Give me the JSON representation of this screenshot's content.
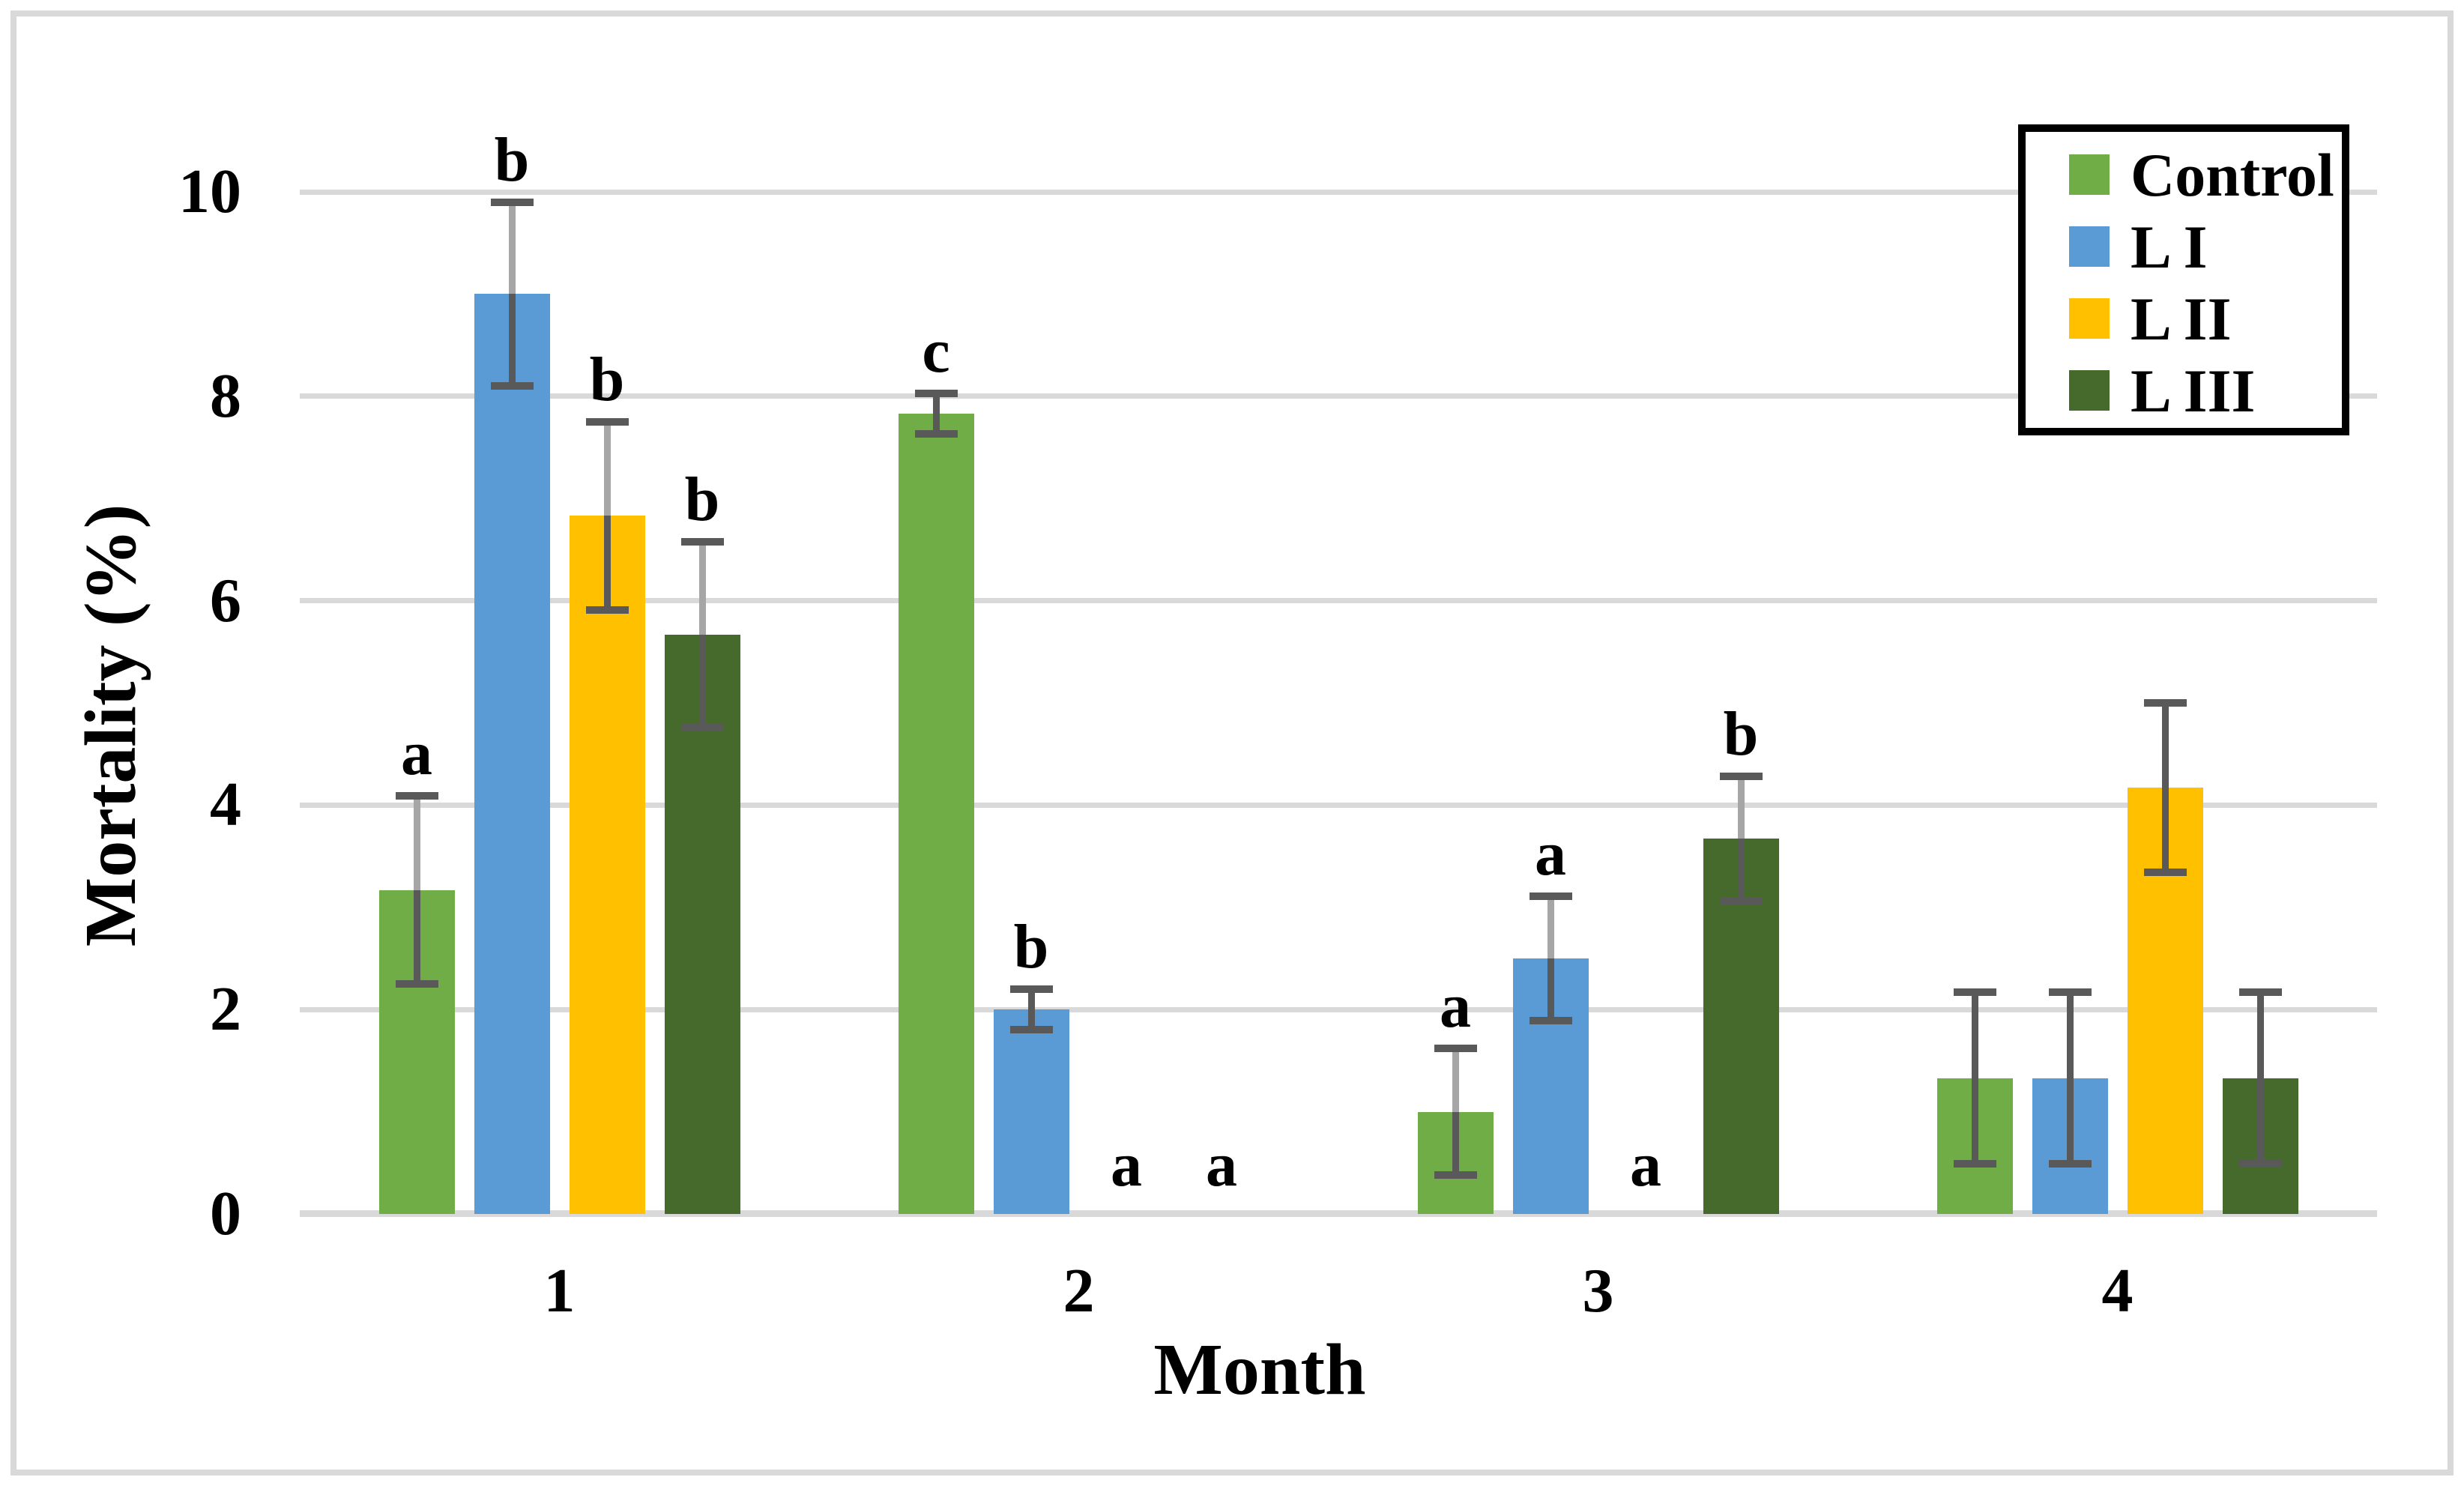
{
  "chart_data": {
    "type": "bar",
    "title": "",
    "xlabel": "Month",
    "ylabel": "Mortality (%)",
    "categories": [
      "1",
      "2",
      "3",
      "4"
    ],
    "ylim": [
      0,
      10
    ],
    "yticks": [
      0,
      2,
      4,
      6,
      8,
      10
    ],
    "grid": true,
    "legend_position": "top-right",
    "series": [
      {
        "name": "Control",
        "color": "#70AD47",
        "values": [
          3.17,
          7.83,
          1.0,
          1.33
        ],
        "errors": [
          0.92,
          0.2,
          0.62,
          0.84
        ],
        "letters": [
          "a",
          "c",
          "a",
          ""
        ]
      },
      {
        "name": "L I",
        "color": "#5B9BD5",
        "values": [
          9.0,
          2.0,
          2.5,
          1.33
        ],
        "errors": [
          0.9,
          0.2,
          0.61,
          0.84
        ],
        "letters": [
          "b",
          "b",
          "a",
          ""
        ]
      },
      {
        "name": "L II",
        "color": "#FFC000",
        "values": [
          6.83,
          0,
          0,
          4.17
        ],
        "errors": [
          0.92,
          0,
          0,
          0.83
        ],
        "letters": [
          "b",
          "a",
          "a",
          ""
        ]
      },
      {
        "name": "L III",
        "color": "#456A2C",
        "values": [
          5.67,
          0,
          3.67,
          1.33
        ],
        "errors": [
          0.91,
          0,
          0.61,
          0.84
        ],
        "letters": [
          "b",
          "a",
          "b",
          ""
        ]
      }
    ],
    "error_bar_style": {
      "cap_color": "#595959",
      "stem_below_bar_top_color": "#595959",
      "stem_above_bar_top_color_by_month": [
        "#a6a6a6",
        "#595959",
        "#a6a6a6",
        "#595959"
      ]
    },
    "colors": {
      "gridline": "#d9d9d9",
      "axis_baseline": "#d9d9d9",
      "figure_border": "#d9d9d9",
      "text": "#000000",
      "background": "#ffffff"
    }
  }
}
